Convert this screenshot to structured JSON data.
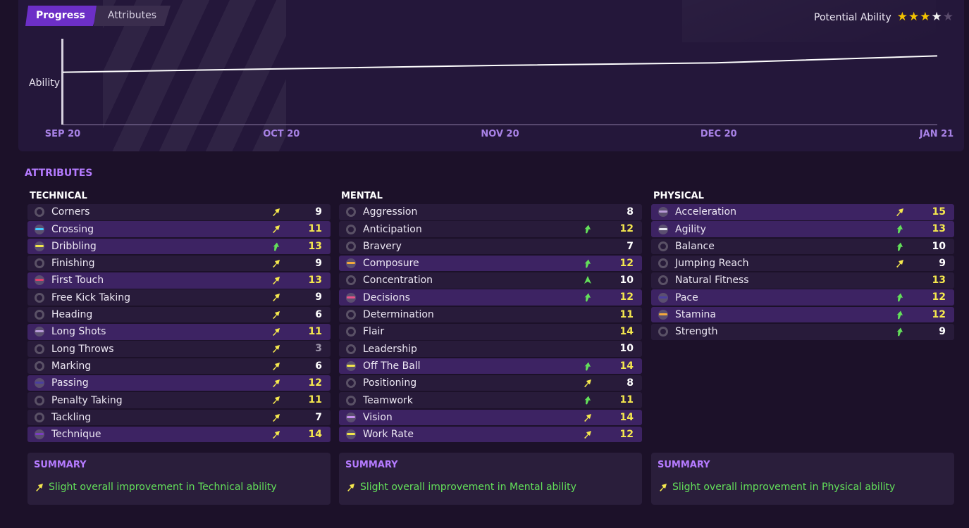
{
  "tabs": [
    {
      "label": "Progress",
      "active": true
    },
    {
      "label": "Attributes",
      "active": false
    }
  ],
  "potential": {
    "label": "Potential Ability",
    "stars": 3.5,
    "max": 5
  },
  "chart_data": {
    "type": "line",
    "ylabel": "Ability",
    "xlabel": "",
    "x": [
      "SEP 20",
      "OCT 20",
      "NOV 20",
      "DEC 20",
      "JAN 21"
    ],
    "values": [
      61,
      65,
      69,
      72,
      80
    ],
    "ylim": [
      0,
      100
    ],
    "line_color": "#ffffff",
    "tick_color": "#a882e6",
    "grid": false
  },
  "attributes_title": "ATTRIBUTES",
  "columns": [
    {
      "title": "TECHNICAL",
      "rows": [
        {
          "name": "Corners",
          "value": "9",
          "icon": "ring",
          "arrow": "up-right-yellow",
          "highlight": false,
          "vcolor": "white"
        },
        {
          "name": "Crossing",
          "value": "11",
          "icon": "dot",
          "bar": "#45c8ff",
          "arrow": "up-right-yellow",
          "highlight": true,
          "vcolor": "yellow"
        },
        {
          "name": "Dribbling",
          "value": "13",
          "icon": "dot",
          "bar": "#f2e64a",
          "arrow": "up-green",
          "highlight": true,
          "vcolor": "yellow"
        },
        {
          "name": "Finishing",
          "value": "9",
          "icon": "ring",
          "arrow": "up-right-yellow",
          "highlight": false,
          "vcolor": "white"
        },
        {
          "name": "First Touch",
          "value": "13",
          "icon": "dot",
          "bar": "#e0406e",
          "arrow": "up-right-yellow",
          "highlight": true,
          "vcolor": "yellow"
        },
        {
          "name": "Free Kick Taking",
          "value": "9",
          "icon": "ring",
          "arrow": "up-right-yellow",
          "highlight": false,
          "vcolor": "white"
        },
        {
          "name": "Heading",
          "value": "6",
          "icon": "ring",
          "arrow": "up-right-yellow",
          "highlight": false,
          "vcolor": "white"
        },
        {
          "name": "Long Shots",
          "value": "11",
          "icon": "dot",
          "bar": "#b89ad8",
          "arrow": "up-right-yellow",
          "highlight": true,
          "vcolor": "yellow"
        },
        {
          "name": "Long Throws",
          "value": "3",
          "icon": "ring",
          "arrow": "up-right-yellow",
          "highlight": false,
          "vcolor": "dim"
        },
        {
          "name": "Marking",
          "value": "6",
          "icon": "ring",
          "arrow": "up-right-yellow",
          "highlight": false,
          "vcolor": "white"
        },
        {
          "name": "Passing",
          "value": "12",
          "icon": "dot",
          "bar": "#4b3ea0",
          "arrow": "up-right-yellow",
          "highlight": true,
          "vcolor": "yellow"
        },
        {
          "name": "Penalty Taking",
          "value": "11",
          "icon": "ring",
          "arrow": "up-right-yellow",
          "highlight": false,
          "vcolor": "yellow"
        },
        {
          "name": "Tackling",
          "value": "7",
          "icon": "ring",
          "arrow": "up-right-yellow",
          "highlight": false,
          "vcolor": "white"
        },
        {
          "name": "Technique",
          "value": "14",
          "icon": "dot",
          "bar": "#7a3cc2",
          "arrow": "up-right-yellow",
          "highlight": true,
          "vcolor": "yellow"
        }
      ],
      "summary_title": "SUMMARY",
      "summary_text": "Slight overall improvement in Technical ability"
    },
    {
      "title": "MENTAL",
      "rows": [
        {
          "name": "Aggression",
          "value": "8",
          "icon": "ring",
          "arrow": "",
          "highlight": false,
          "vcolor": "white"
        },
        {
          "name": "Anticipation",
          "value": "12",
          "icon": "ring",
          "arrow": "up-green",
          "highlight": false,
          "vcolor": "yellow"
        },
        {
          "name": "Bravery",
          "value": "7",
          "icon": "ring",
          "arrow": "",
          "highlight": false,
          "vcolor": "white"
        },
        {
          "name": "Composure",
          "value": "12",
          "icon": "dot",
          "bar": "#f3a83c",
          "arrow": "up-green",
          "highlight": true,
          "vcolor": "yellow"
        },
        {
          "name": "Concentration",
          "value": "10",
          "icon": "ring",
          "arrow": "up-strong-green",
          "highlight": false,
          "vcolor": "white"
        },
        {
          "name": "Decisions",
          "value": "12",
          "icon": "dot",
          "bar": "#e8508a",
          "arrow": "up-green",
          "highlight": true,
          "vcolor": "yellow"
        },
        {
          "name": "Determination",
          "value": "11",
          "icon": "ring",
          "arrow": "",
          "highlight": false,
          "vcolor": "yellow"
        },
        {
          "name": "Flair",
          "value": "14",
          "icon": "ring",
          "arrow": "",
          "highlight": false,
          "vcolor": "yellow"
        },
        {
          "name": "Leadership",
          "value": "10",
          "icon": "ring",
          "arrow": "",
          "highlight": false,
          "vcolor": "white"
        },
        {
          "name": "Off The Ball",
          "value": "14",
          "icon": "dot",
          "bar": "#f2e64a",
          "arrow": "up-green",
          "highlight": true,
          "vcolor": "yellow"
        },
        {
          "name": "Positioning",
          "value": "8",
          "icon": "ring",
          "arrow": "up-right-yellow",
          "highlight": false,
          "vcolor": "white"
        },
        {
          "name": "Teamwork",
          "value": "11",
          "icon": "ring",
          "arrow": "up-green",
          "highlight": false,
          "vcolor": "yellow"
        },
        {
          "name": "Vision",
          "value": "14",
          "icon": "dot",
          "bar": "#c68cf0",
          "arrow": "up-right-yellow",
          "highlight": true,
          "vcolor": "yellow"
        },
        {
          "name": "Work Rate",
          "value": "12",
          "icon": "dot",
          "bar": "#f2e64a",
          "arrow": "up-right-yellow",
          "highlight": true,
          "vcolor": "yellow"
        }
      ],
      "summary_title": "SUMMARY",
      "summary_text": "Slight overall improvement in Mental ability"
    },
    {
      "title": "PHYSICAL",
      "rows": [
        {
          "name": "Acceleration",
          "value": "15",
          "icon": "dot",
          "bar": "#b89ad8",
          "arrow": "up-right-yellow",
          "highlight": true,
          "vcolor": "yellow"
        },
        {
          "name": "Agility",
          "value": "13",
          "icon": "dot",
          "bar": "#e6e6f0",
          "arrow": "up-green",
          "highlight": true,
          "vcolor": "yellow"
        },
        {
          "name": "Balance",
          "value": "10",
          "icon": "ring",
          "arrow": "up-green",
          "highlight": false,
          "vcolor": "white"
        },
        {
          "name": "Jumping Reach",
          "value": "9",
          "icon": "ring",
          "arrow": "up-right-yellow",
          "highlight": false,
          "vcolor": "white"
        },
        {
          "name": "Natural Fitness",
          "value": "13",
          "icon": "ring",
          "arrow": "",
          "highlight": false,
          "vcolor": "yellow"
        },
        {
          "name": "Pace",
          "value": "12",
          "icon": "dot",
          "bar": "#4b3ea0",
          "arrow": "up-green",
          "highlight": true,
          "vcolor": "yellow"
        },
        {
          "name": "Stamina",
          "value": "12",
          "icon": "dot",
          "bar": "#f3a83c",
          "arrow": "up-green",
          "highlight": true,
          "vcolor": "yellow"
        },
        {
          "name": "Strength",
          "value": "9",
          "icon": "ring",
          "arrow": "up-green",
          "highlight": false,
          "vcolor": "white"
        }
      ],
      "summary_title": "SUMMARY",
      "summary_text": "Slight overall improvement in Physical ability"
    }
  ]
}
